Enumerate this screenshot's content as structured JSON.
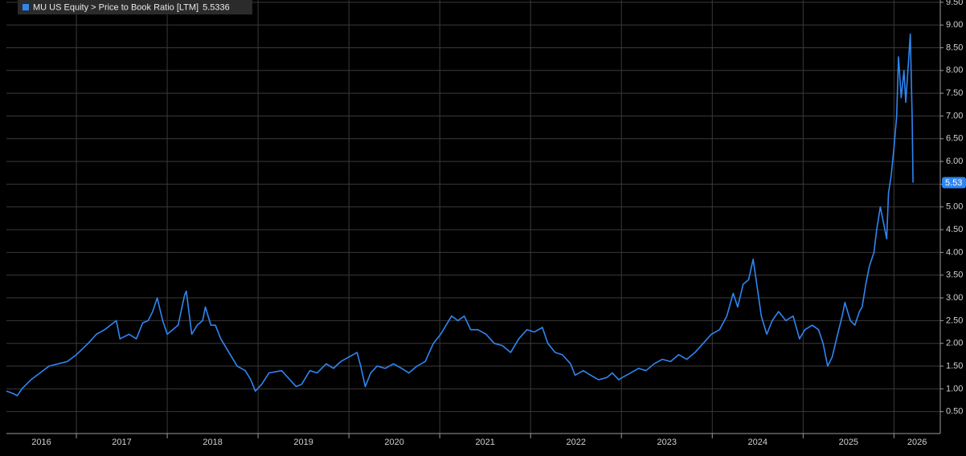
{
  "chart_data": {
    "type": "line",
    "series": [
      {
        "name": "MU US Equity > Price to Book Ratio [LTM]",
        "color": "#2f86f2",
        "x": [
          2016.23,
          2016.3,
          2016.35,
          2016.4,
          2016.45,
          2016.5,
          2016.6,
          2016.7,
          2016.8,
          2016.9,
          2017.0,
          2017.13,
          2017.22,
          2017.31,
          2017.44,
          2017.48,
          2017.58,
          2017.66,
          2017.73,
          2017.79,
          2017.84,
          2017.89,
          2017.95,
          2018.0,
          2018.06,
          2018.12,
          2018.19,
          2018.21,
          2018.27,
          2018.33,
          2018.39,
          2018.42,
          2018.48,
          2018.53,
          2018.59,
          2018.68,
          2018.77,
          2018.86,
          2018.92,
          2018.97,
          2019.04,
          2019.12,
          2019.26,
          2019.35,
          2019.42,
          2019.48,
          2019.57,
          2019.65,
          2019.75,
          2019.83,
          2019.91,
          2020.0,
          2020.09,
          2020.13,
          2020.18,
          2020.24,
          2020.31,
          2020.4,
          2020.49,
          2020.58,
          2020.66,
          2020.75,
          2020.84,
          2020.93,
          2021.01,
          2021.07,
          2021.13,
          2021.2,
          2021.27,
          2021.34,
          2021.42,
          2021.51,
          2021.6,
          2021.69,
          2021.78,
          2021.87,
          2021.96,
          2022.04,
          2022.13,
          2022.19,
          2022.27,
          2022.35,
          2022.44,
          2022.49,
          2022.58,
          2022.66,
          2022.75,
          2022.84,
          2022.9,
          2022.97,
          2023.01,
          2023.1,
          2023.19,
          2023.27,
          2023.36,
          2023.45,
          2023.54,
          2023.63,
          2023.72,
          2023.81,
          2023.9,
          2023.99,
          2024.08,
          2024.16,
          2024.23,
          2024.28,
          2024.34,
          2024.4,
          2024.45,
          2024.49,
          2024.54,
          2024.6,
          2024.66,
          2024.73,
          2024.81,
          2024.89,
          2024.96,
          2025.02,
          2025.1,
          2025.17,
          2025.22,
          2025.27,
          2025.32,
          2025.38,
          2025.43,
          2025.46,
          2025.52,
          2025.57,
          2025.62,
          2025.65,
          2025.69,
          2025.73,
          2025.78,
          2025.81,
          2025.85,
          2025.88,
          2025.92,
          2025.94,
          2025.97,
          2026.0,
          2026.03,
          2026.05,
          2026.08,
          2026.11,
          2026.13,
          2026.16,
          2026.18,
          2026.2,
          2026.21
        ],
        "values": [
          0.95,
          0.9,
          0.85,
          1.0,
          1.1,
          1.2,
          1.35,
          1.5,
          1.55,
          1.6,
          1.75,
          2.0,
          2.2,
          2.3,
          2.5,
          2.1,
          2.2,
          2.1,
          2.45,
          2.5,
          2.7,
          3.0,
          2.5,
          2.2,
          2.3,
          2.4,
          3.05,
          3.15,
          2.2,
          2.4,
          2.5,
          2.8,
          2.4,
          2.4,
          2.1,
          1.8,
          1.5,
          1.4,
          1.2,
          0.95,
          1.1,
          1.35,
          1.4,
          1.2,
          1.05,
          1.1,
          1.4,
          1.35,
          1.55,
          1.45,
          1.6,
          1.7,
          1.8,
          1.5,
          1.05,
          1.35,
          1.5,
          1.45,
          1.55,
          1.45,
          1.35,
          1.5,
          1.6,
          2.0,
          2.2,
          2.4,
          2.6,
          2.5,
          2.6,
          2.3,
          2.3,
          2.2,
          2.0,
          1.95,
          1.8,
          2.1,
          2.3,
          2.25,
          2.35,
          2.0,
          1.8,
          1.75,
          1.55,
          1.3,
          1.4,
          1.3,
          1.2,
          1.25,
          1.35,
          1.2,
          1.25,
          1.35,
          1.45,
          1.4,
          1.55,
          1.65,
          1.6,
          1.75,
          1.65,
          1.8,
          2.0,
          2.2,
          2.3,
          2.6,
          3.1,
          2.8,
          3.3,
          3.4,
          3.85,
          3.3,
          2.6,
          2.2,
          2.5,
          2.7,
          2.5,
          2.6,
          2.1,
          2.3,
          2.4,
          2.3,
          2.0,
          1.5,
          1.7,
          2.2,
          2.6,
          2.9,
          2.5,
          2.4,
          2.7,
          2.8,
          3.3,
          3.7,
          4.0,
          4.5,
          5.0,
          4.7,
          4.3,
          5.3,
          5.7,
          6.3,
          7.0,
          8.3,
          7.4,
          8.0,
          7.3,
          8.2,
          8.8,
          7.0,
          5.5336
        ]
      }
    ],
    "last_value_label": "5.53",
    "xlim": [
      2016.23,
      2026.51
    ],
    "xticks": [
      2016,
      2017,
      2018,
      2019,
      2020,
      2021,
      2022,
      2023,
      2024,
      2025,
      2026
    ],
    "ylim": [
      0,
      9.55
    ],
    "yticks": [
      {
        "value": 0.5,
        "label": "0.50"
      },
      {
        "value": 1,
        "label": "1.00"
      },
      {
        "value": 1.5,
        "label": "1.50"
      },
      {
        "value": 2,
        "label": "2.00"
      },
      {
        "value": 2.5,
        "label": "2.50"
      },
      {
        "value": 3,
        "label": "3.00"
      },
      {
        "value": 3.5,
        "label": "3.50"
      },
      {
        "value": 4,
        "label": "4.00"
      },
      {
        "value": 4.5,
        "label": "4.50"
      },
      {
        "value": 5,
        "label": "5.00"
      },
      {
        "value": 5.5,
        "label": "5.50"
      },
      {
        "value": 6,
        "label": "6.00"
      },
      {
        "value": 6.5,
        "label": "6.50"
      },
      {
        "value": 7,
        "label": "7.00"
      },
      {
        "value": 7.5,
        "label": "7.50"
      },
      {
        "value": 8,
        "label": "8.00"
      },
      {
        "value": 8.5,
        "label": "8.50"
      },
      {
        "value": 9,
        "label": "9.00"
      },
      {
        "value": 9.5,
        "label": "9.50"
      }
    ],
    "grid": true
  }
}
